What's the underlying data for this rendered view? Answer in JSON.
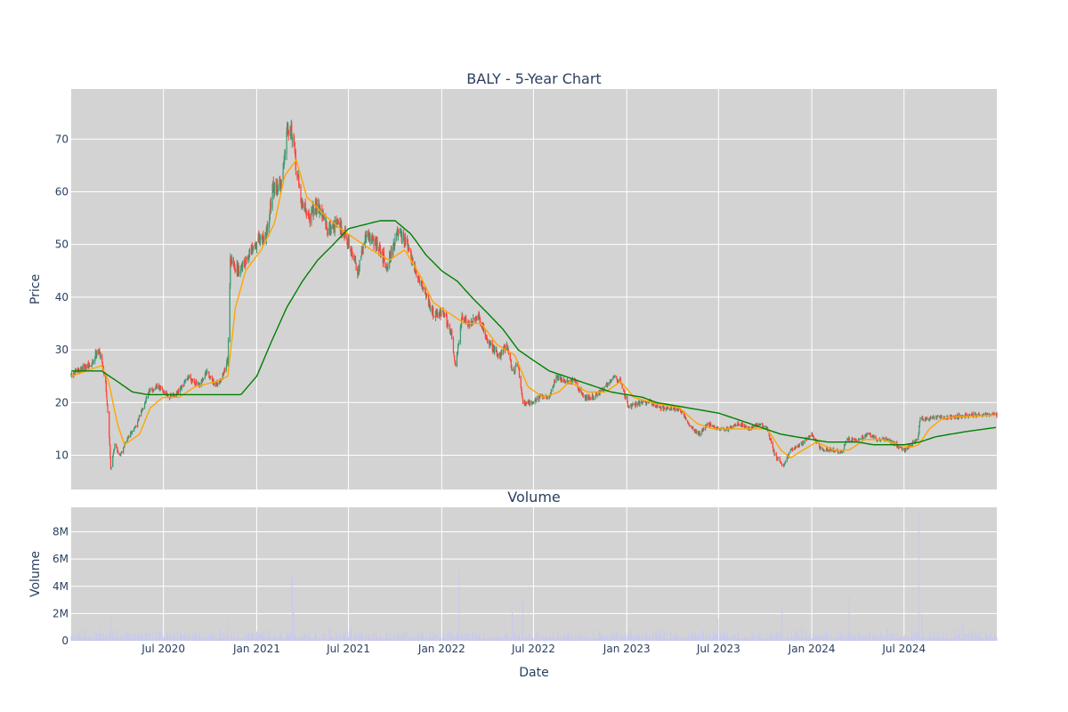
{
  "chart_data": [
    {
      "type": "candlestick",
      "title": "BALY - 5-Year Chart",
      "xlabel": "",
      "ylabel": "Price",
      "x_range": [
        "2020-01-01",
        "2024-12-31"
      ],
      "ylim": [
        3.5,
        79.5
      ],
      "y_ticks": [
        10,
        20,
        30,
        40,
        50,
        60,
        70
      ],
      "grid": true,
      "background": "#d3d3d3",
      "colors": {
        "up": "#3d9970",
        "down": "#ff4136",
        "ma_short": "#ffa500",
        "ma_long": "#008000"
      },
      "price_anchors": [
        [
          "2020-01-01",
          25
        ],
        [
          "2020-01-20",
          26.5
        ],
        [
          "2020-02-10",
          27
        ],
        [
          "2020-02-21",
          30
        ],
        [
          "2020-02-28",
          29
        ],
        [
          "2020-03-09",
          24
        ],
        [
          "2020-03-17",
          12
        ],
        [
          "2020-03-19",
          7.5
        ],
        [
          "2020-03-27",
          12
        ],
        [
          "2020-04-06",
          10
        ],
        [
          "2020-04-20",
          13
        ],
        [
          "2020-05-10",
          16
        ],
        [
          "2020-06-01",
          22
        ],
        [
          "2020-06-20",
          23
        ],
        [
          "2020-07-15",
          21
        ],
        [
          "2020-08-01",
          22
        ],
        [
          "2020-08-20",
          25
        ],
        [
          "2020-09-10",
          23
        ],
        [
          "2020-09-25",
          26
        ],
        [
          "2020-10-10",
          23
        ],
        [
          "2020-10-25",
          25
        ],
        [
          "2020-11-05",
          28
        ],
        [
          "2020-11-10",
          47
        ],
        [
          "2020-11-25",
          45
        ],
        [
          "2020-12-10",
          47
        ],
        [
          "2020-12-30",
          50
        ],
        [
          "2021-01-20",
          52
        ],
        [
          "2021-02-01",
          60
        ],
        [
          "2021-02-20",
          62
        ],
        [
          "2021-03-02",
          73
        ],
        [
          "2021-03-10",
          72
        ],
        [
          "2021-03-18",
          66
        ],
        [
          "2021-03-30",
          58
        ],
        [
          "2021-04-15",
          55
        ],
        [
          "2021-05-01",
          58
        ],
        [
          "2021-05-20",
          53
        ],
        [
          "2021-06-10",
          54
        ],
        [
          "2021-06-25",
          52
        ],
        [
          "2021-07-05",
          49
        ],
        [
          "2021-07-20",
          45
        ],
        [
          "2021-08-05",
          52
        ],
        [
          "2021-08-25",
          50
        ],
        [
          "2021-09-15",
          46
        ],
        [
          "2021-10-05",
          52
        ],
        [
          "2021-10-25",
          50
        ],
        [
          "2021-11-05",
          46
        ],
        [
          "2021-11-25",
          42
        ],
        [
          "2021-12-15",
          37
        ],
        [
          "2022-01-05",
          37
        ],
        [
          "2022-01-20",
          33
        ],
        [
          "2022-01-28",
          27
        ],
        [
          "2022-02-10",
          36
        ],
        [
          "2022-02-25",
          35
        ],
        [
          "2022-03-15",
          36
        ],
        [
          "2022-04-05",
          31
        ],
        [
          "2022-04-25",
          29
        ],
        [
          "2022-05-10",
          31
        ],
        [
          "2022-05-20",
          26
        ],
        [
          "2022-06-01",
          27
        ],
        [
          "2022-06-10",
          20
        ],
        [
          "2022-06-25",
          20
        ],
        [
          "2022-07-15",
          21
        ],
        [
          "2022-08-01",
          21
        ],
        [
          "2022-08-15",
          25
        ],
        [
          "2022-09-01",
          24
        ],
        [
          "2022-09-20",
          24
        ],
        [
          "2022-10-10",
          21
        ],
        [
          "2022-10-30",
          21
        ],
        [
          "2022-11-20",
          23
        ],
        [
          "2022-12-05",
          25
        ],
        [
          "2022-12-20",
          24
        ],
        [
          "2023-01-05",
          19
        ],
        [
          "2023-01-25",
          20
        ],
        [
          "2023-02-15",
          20
        ],
        [
          "2023-03-10",
          19
        ],
        [
          "2023-04-01",
          19
        ],
        [
          "2023-04-20",
          18
        ],
        [
          "2023-05-10",
          15
        ],
        [
          "2023-05-25",
          14
        ],
        [
          "2023-06-10",
          16
        ],
        [
          "2023-06-30",
          15
        ],
        [
          "2023-07-20",
          15
        ],
        [
          "2023-08-10",
          16
        ],
        [
          "2023-08-30",
          15
        ],
        [
          "2023-09-20",
          16
        ],
        [
          "2023-10-05",
          15
        ],
        [
          "2023-10-20",
          10
        ],
        [
          "2023-11-05",
          8
        ],
        [
          "2023-11-20",
          11
        ],
        [
          "2023-12-10",
          12
        ],
        [
          "2023-12-31",
          14
        ],
        [
          "2024-01-20",
          11
        ],
        [
          "2024-02-10",
          11
        ],
        [
          "2024-03-01",
          10.5
        ],
        [
          "2024-03-10",
          13
        ],
        [
          "2024-04-01",
          13
        ],
        [
          "2024-04-20",
          14
        ],
        [
          "2024-05-10",
          13
        ],
        [
          "2024-05-30",
          13
        ],
        [
          "2024-06-15",
          12
        ],
        [
          "2024-06-30",
          11
        ],
        [
          "2024-07-15",
          12
        ],
        [
          "2024-07-28",
          13
        ],
        [
          "2024-08-02",
          17
        ],
        [
          "2024-08-20",
          17
        ],
        [
          "2024-09-15",
          17.2
        ],
        [
          "2024-10-15",
          17.4
        ],
        [
          "2024-11-15",
          17.6
        ],
        [
          "2024-12-31",
          17.7
        ]
      ],
      "ma_short_anchors": [
        [
          "2020-01-01",
          25
        ],
        [
          "2020-02-15",
          26.5
        ],
        [
          "2020-03-01",
          27
        ],
        [
          "2020-03-15",
          24
        ],
        [
          "2020-04-01",
          16
        ],
        [
          "2020-04-15",
          12
        ],
        [
          "2020-05-15",
          14
        ],
        [
          "2020-06-05",
          19
        ],
        [
          "2020-06-30",
          21
        ],
        [
          "2020-08-01",
          21
        ],
        [
          "2020-09-01",
          23
        ],
        [
          "2020-10-15",
          24
        ],
        [
          "2020-11-05",
          25
        ],
        [
          "2020-11-20",
          38
        ],
        [
          "2020-12-10",
          45
        ],
        [
          "2021-01-10",
          49
        ],
        [
          "2021-02-05",
          54
        ],
        [
          "2021-02-25",
          63
        ],
        [
          "2021-03-20",
          66
        ],
        [
          "2021-04-10",
          59
        ],
        [
          "2021-05-10",
          56
        ],
        [
          "2021-06-15",
          53
        ],
        [
          "2021-07-15",
          51
        ],
        [
          "2021-08-15",
          49
        ],
        [
          "2021-09-20",
          47
        ],
        [
          "2021-10-20",
          49
        ],
        [
          "2021-11-20",
          44
        ],
        [
          "2021-12-15",
          39
        ],
        [
          "2022-01-15",
          37
        ],
        [
          "2022-02-15",
          35
        ],
        [
          "2022-03-20",
          35
        ],
        [
          "2022-04-20",
          31
        ],
        [
          "2022-05-25",
          29
        ],
        [
          "2022-06-20",
          23
        ],
        [
          "2022-07-20",
          21
        ],
        [
          "2022-08-20",
          22
        ],
        [
          "2022-09-10",
          24
        ],
        [
          "2022-10-15",
          22
        ],
        [
          "2022-11-20",
          22
        ],
        [
          "2022-12-20",
          24
        ],
        [
          "2023-01-15",
          21
        ],
        [
          "2023-02-20",
          20
        ],
        [
          "2023-04-15",
          19
        ],
        [
          "2023-05-20",
          16
        ],
        [
          "2023-06-20",
          15
        ],
        [
          "2023-08-20",
          15
        ],
        [
          "2023-10-05",
          15
        ],
        [
          "2023-11-01",
          11
        ],
        [
          "2023-11-20",
          9.5
        ],
        [
          "2023-12-15",
          11
        ],
        [
          "2024-01-10",
          12.5
        ],
        [
          "2024-02-15",
          11
        ],
        [
          "2024-03-15",
          11
        ],
        [
          "2024-04-15",
          13
        ],
        [
          "2024-05-20",
          13
        ],
        [
          "2024-06-20",
          12
        ],
        [
          "2024-07-15",
          11.5
        ],
        [
          "2024-07-30",
          12
        ],
        [
          "2024-08-20",
          15
        ],
        [
          "2024-09-15",
          17
        ],
        [
          "2024-10-15",
          17.3
        ],
        [
          "2024-12-31",
          17.6
        ]
      ],
      "ma_long_anchors": [
        [
          "2020-01-01",
          26
        ],
        [
          "2020-03-01",
          26
        ],
        [
          "2020-04-01",
          24
        ],
        [
          "2020-05-01",
          22
        ],
        [
          "2020-06-01",
          21.5
        ],
        [
          "2020-12-01",
          21.5
        ],
        [
          "2021-01-01",
          25
        ],
        [
          "2021-02-01",
          32
        ],
        [
          "2021-03-01",
          38
        ],
        [
          "2021-04-01",
          43
        ],
        [
          "2021-05-01",
          47
        ],
        [
          "2021-06-01",
          50
        ],
        [
          "2021-07-01",
          53
        ],
        [
          "2021-09-01",
          54.5
        ],
        [
          "2021-10-01",
          54.5
        ],
        [
          "2021-11-01",
          52
        ],
        [
          "2021-12-01",
          48
        ],
        [
          "2022-01-01",
          45
        ],
        [
          "2022-02-01",
          43
        ],
        [
          "2022-03-01",
          40
        ],
        [
          "2022-04-01",
          37
        ],
        [
          "2022-05-01",
          34
        ],
        [
          "2022-06-01",
          30
        ],
        [
          "2022-07-01",
          28
        ],
        [
          "2022-08-01",
          26
        ],
        [
          "2022-09-01",
          25
        ],
        [
          "2022-10-01",
          24
        ],
        [
          "2022-11-01",
          23
        ],
        [
          "2022-12-01",
          22
        ],
        [
          "2023-01-01",
          21.5
        ],
        [
          "2023-02-01",
          21
        ],
        [
          "2023-03-01",
          20
        ],
        [
          "2023-04-01",
          19.5
        ],
        [
          "2023-05-01",
          19
        ],
        [
          "2023-06-01",
          18.5
        ],
        [
          "2023-07-01",
          18
        ],
        [
          "2023-08-01",
          17
        ],
        [
          "2023-09-01",
          16
        ],
        [
          "2023-10-01",
          15
        ],
        [
          "2023-11-01",
          14
        ],
        [
          "2023-12-01",
          13.5
        ],
        [
          "2024-01-01",
          13
        ],
        [
          "2024-02-01",
          12.5
        ],
        [
          "2024-03-01",
          12.5
        ],
        [
          "2024-04-01",
          12.5
        ],
        [
          "2024-05-01",
          12
        ],
        [
          "2024-06-01",
          12
        ],
        [
          "2024-07-01",
          12
        ],
        [
          "2024-08-01",
          12.5
        ],
        [
          "2024-09-01",
          13.5
        ],
        [
          "2024-10-01",
          14
        ],
        [
          "2024-11-01",
          14.5
        ],
        [
          "2024-12-31",
          15.3
        ]
      ]
    },
    {
      "type": "bar",
      "title": "Volume",
      "xlabel": "Date",
      "ylabel": "Volume",
      "x_range": [
        "2020-01-01",
        "2024-12-31"
      ],
      "ylim": [
        0,
        9800000
      ],
      "y_ticks": [
        0,
        2000000,
        4000000,
        6000000,
        8000000
      ],
      "y_tick_labels": [
        "0",
        "2M",
        "4M",
        "6M",
        "8M"
      ],
      "x_ticks": [
        "2020-07-01",
        "2021-01-01",
        "2021-07-01",
        "2022-01-01",
        "2022-07-01",
        "2023-01-01",
        "2023-07-01",
        "2024-01-01",
        "2024-07-01"
      ],
      "x_tick_labels": [
        "Jul 2020",
        "Jan 2021",
        "Jul 2021",
        "Jan 2022",
        "Jul 2022",
        "Jan 2023",
        "Jul 2023",
        "Jan 2024",
        "Jul 2024"
      ],
      "grid": true,
      "background": "#d3d3d3",
      "bar_color": "#c8c8f0",
      "baseline_volume": 400000,
      "spikes": [
        [
          "2020-03-20",
          1800000
        ],
        [
          "2020-11-05",
          1600000
        ],
        [
          "2021-03-12",
          4900000
        ],
        [
          "2021-03-15",
          2300000
        ],
        [
          "2022-02-04",
          5200000
        ],
        [
          "2022-06-10",
          2900000
        ],
        [
          "2022-05-20",
          2100000
        ],
        [
          "2023-06-30",
          1600000
        ],
        [
          "2023-11-03",
          2500000
        ],
        [
          "2024-03-15",
          3200000
        ],
        [
          "2024-07-30",
          9300000
        ],
        [
          "2024-08-05",
          2000000
        ],
        [
          "2024-10-25",
          1400000
        ]
      ]
    }
  ]
}
